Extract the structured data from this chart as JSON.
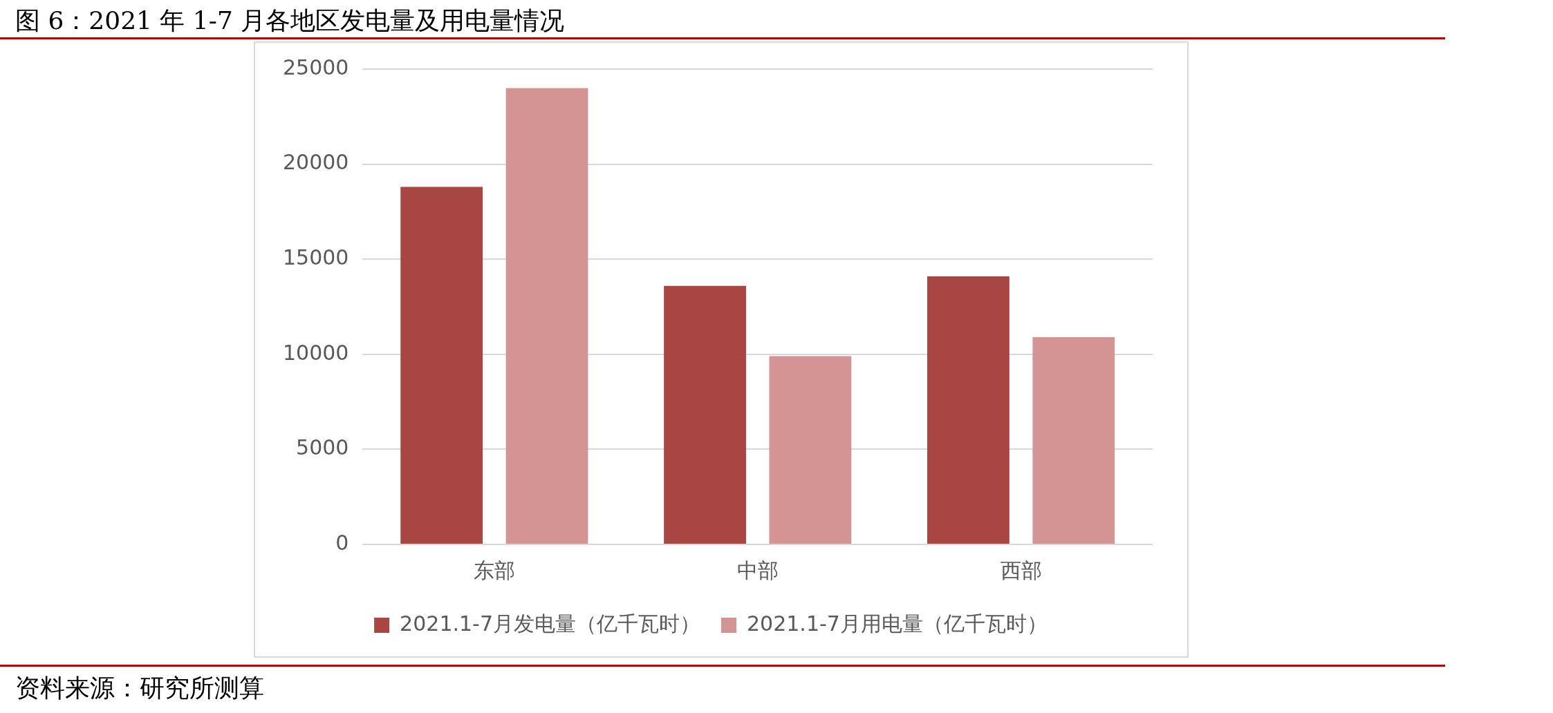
{
  "chart_data": {
    "type": "bar",
    "title": "图 6：2021 年 1-7 月各地区发电量及用电量情况",
    "categories": [
      "东部",
      "中部",
      "西部"
    ],
    "series": [
      {
        "name": "2021.1-7月发电量（亿千瓦时）",
        "color": "#a84644",
        "values": [
          18800,
          13600,
          14100
        ]
      },
      {
        "name": "2021.1-7月用电量（亿千瓦时）",
        "color": "#d49494",
        "values": [
          24000,
          9900,
          10900
        ]
      }
    ],
    "ylim": [
      0,
      25000
    ],
    "yticks": [
      0,
      5000,
      10000,
      15000,
      20000,
      25000
    ],
    "grid": "y",
    "legend": "bottom",
    "annotations": [
      "资料来源：研究所测算"
    ]
  }
}
